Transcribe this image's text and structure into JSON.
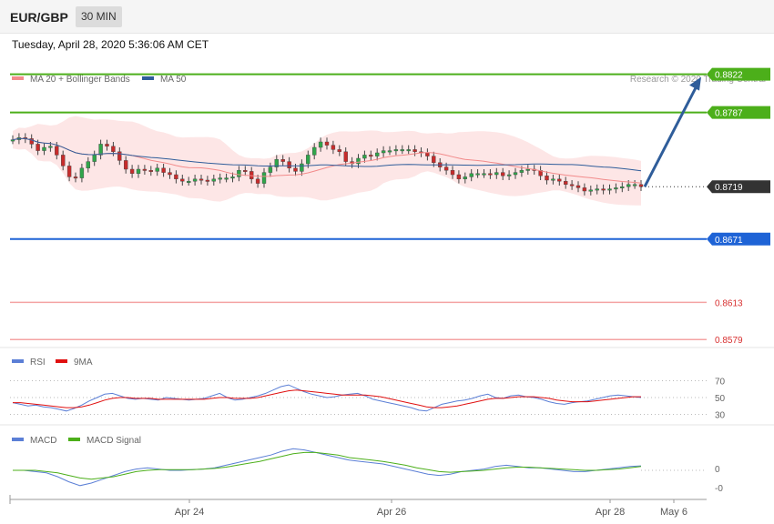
{
  "header": {
    "symbol": "EUR/GBP",
    "timeframe": "30 MIN"
  },
  "timestamp": "Tuesday, April 28, 2020 5:36:06 AM CET",
  "credit": "Research © 2020 Trading Central",
  "legend_main": [
    {
      "label": "MA 20 + Bollinger Bands",
      "color": "#f28b8b"
    },
    {
      "label": "MA 50",
      "color": "#2f5d9a"
    }
  ],
  "legend_rsi": [
    {
      "label": "RSI",
      "color": "#5b7fd6"
    },
    {
      "label": "9MA",
      "color": "#e01010"
    }
  ],
  "legend_macd": [
    {
      "label": "MACD",
      "color": "#5b7fd6"
    },
    {
      "label": "MACD Signal",
      "color": "#4caf1a"
    }
  ],
  "chart_data": [
    {
      "type": "candlestick",
      "title": "EUR/GBP 30 MIN",
      "price_axis": [
        0.8565,
        0.884
      ],
      "levels": [
        {
          "value": 0.8822,
          "label": "0.8822",
          "kind": "resistance",
          "color": "#4caf1a"
        },
        {
          "value": 0.8787,
          "label": "0.8787",
          "kind": "resistance",
          "color": "#4caf1a"
        },
        {
          "value": 0.8719,
          "label": "0.8719",
          "kind": "last",
          "color": "#333333"
        },
        {
          "value": 0.8671,
          "label": "0.8671",
          "kind": "pivot",
          "color": "#1e63d6"
        },
        {
          "value": 0.8613,
          "label": "0.8613",
          "kind": "support",
          "color": "#f4a3a3"
        },
        {
          "value": 0.8579,
          "label": "0.8579",
          "kind": "support",
          "color": "#f4a3a3"
        }
      ],
      "close_series": [
        0.8762,
        0.8764,
        0.8763,
        0.8758,
        0.8752,
        0.8755,
        0.8756,
        0.8748,
        0.8738,
        0.8728,
        0.8727,
        0.8736,
        0.8742,
        0.8748,
        0.8758,
        0.8756,
        0.8751,
        0.8743,
        0.8735,
        0.8731,
        0.8735,
        0.8734,
        0.8733,
        0.8736,
        0.8732,
        0.873,
        0.8726,
        0.8724,
        0.8724,
        0.8726,
        0.8725,
        0.8724,
        0.8726,
        0.8727,
        0.8727,
        0.8728,
        0.8734,
        0.8733,
        0.8726,
        0.8722,
        0.8732,
        0.8737,
        0.8744,
        0.8742,
        0.8736,
        0.8733,
        0.874,
        0.8748,
        0.8755,
        0.876,
        0.8757,
        0.8753,
        0.8751,
        0.8742,
        0.874,
        0.8745,
        0.8748,
        0.8747,
        0.875,
        0.8752,
        0.8752,
        0.8753,
        0.8753,
        0.8753,
        0.8751,
        0.875,
        0.8747,
        0.8741,
        0.8737,
        0.8734,
        0.873,
        0.8726,
        0.8728,
        0.8731,
        0.8731,
        0.8731,
        0.873,
        0.8732,
        0.8729,
        0.873,
        0.8732,
        0.8734,
        0.8735,
        0.8734,
        0.8729,
        0.8725,
        0.8726,
        0.8724,
        0.8721,
        0.872,
        0.8718,
        0.8715,
        0.8716,
        0.8717,
        0.8716,
        0.8717,
        0.8718,
        0.8719,
        0.8721,
        0.8721,
        0.8719
      ],
      "forecast_target": 0.8822,
      "x_ticks": [
        "Apr 24",
        "Apr 26",
        "Apr 28",
        "May 6"
      ]
    },
    {
      "type": "line",
      "title": "RSI",
      "series": [
        {
          "name": "RSI",
          "values": [
            44,
            42,
            40,
            41,
            39,
            38,
            36,
            34,
            37,
            41,
            46,
            50,
            54,
            55,
            52,
            49,
            48,
            49,
            48,
            47,
            50,
            49,
            48,
            47,
            48,
            49,
            52,
            55,
            50,
            47,
            48,
            50,
            52,
            55,
            59,
            63,
            65,
            61,
            57,
            54,
            52,
            50,
            51,
            53,
            54,
            55,
            52,
            48,
            46,
            44,
            42,
            40,
            38,
            35,
            34,
            38,
            42,
            44,
            46,
            47,
            49,
            52,
            54,
            50,
            49,
            52,
            53,
            51,
            50,
            48,
            45,
            43,
            42,
            44,
            45,
            46,
            48,
            50,
            52,
            53,
            52,
            51,
            50
          ]
        },
        {
          "name": "9MA",
          "values": [
            44,
            44,
            43,
            42,
            41,
            40,
            39,
            38,
            38,
            39,
            41,
            44,
            47,
            49,
            50,
            50,
            49,
            49,
            49,
            48,
            48,
            48,
            48,
            48,
            48,
            48,
            49,
            50,
            50,
            49,
            49,
            49,
            50,
            52,
            54,
            56,
            58,
            59,
            58,
            57,
            56,
            55,
            54,
            53,
            53,
            53,
            53,
            52,
            51,
            49,
            47,
            45,
            43,
            41,
            39,
            38,
            38,
            39,
            40,
            42,
            44,
            46,
            48,
            49,
            49,
            50,
            51,
            51,
            51,
            50,
            49,
            47,
            46,
            45,
            45,
            45,
            46,
            47,
            48,
            49,
            50,
            51,
            51
          ]
        }
      ],
      "levels": [
        70,
        50,
        30
      ]
    },
    {
      "type": "line",
      "title": "MACD",
      "series": [
        {
          "name": "MACD",
          "values": [
            0,
            0,
            -0.1,
            -0.2,
            -0.5,
            -0.9,
            -1.2,
            -1.0,
            -0.7,
            -0.4,
            -0.1,
            0.1,
            0.2,
            0.1,
            0.0,
            0.0,
            0.05,
            0.1,
            0.2,
            0.4,
            0.6,
            0.8,
            1.0,
            1.2,
            1.5,
            1.7,
            1.6,
            1.4,
            1.2,
            1.0,
            0.8,
            0.7,
            0.6,
            0.5,
            0.3,
            0.1,
            -0.1,
            -0.3,
            -0.4,
            -0.3,
            -0.1,
            0.0,
            0.1,
            0.3,
            0.4,
            0.3,
            0.2,
            0.2,
            0.1,
            0.0,
            -0.1,
            -0.1,
            0.0,
            0.1,
            0.2,
            0.3,
            0.35
          ]
        },
        {
          "name": "MACD Signal",
          "values": [
            0,
            0,
            0,
            -0.1,
            -0.2,
            -0.4,
            -0.6,
            -0.7,
            -0.6,
            -0.5,
            -0.3,
            -0.1,
            0.0,
            0.05,
            0.05,
            0.05,
            0.05,
            0.1,
            0.15,
            0.25,
            0.4,
            0.55,
            0.7,
            0.9,
            1.1,
            1.3,
            1.4,
            1.4,
            1.3,
            1.2,
            1.0,
            0.9,
            0.8,
            0.7,
            0.55,
            0.4,
            0.2,
            0.05,
            -0.1,
            -0.15,
            -0.1,
            -0.05,
            0.0,
            0.1,
            0.2,
            0.25,
            0.25,
            0.2,
            0.15,
            0.1,
            0.05,
            0.0,
            0.0,
            0.05,
            0.1,
            0.2,
            0.3
          ]
        }
      ],
      "levels": [
        0,
        0
      ]
    }
  ]
}
